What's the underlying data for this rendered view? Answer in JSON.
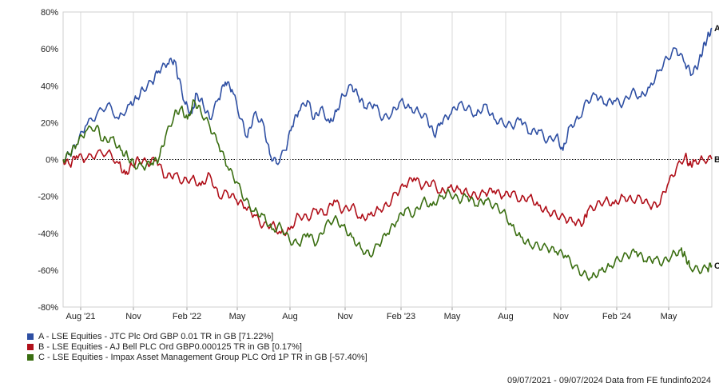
{
  "chart_data": {
    "type": "line",
    "y_ticks": [
      "80%",
      "60%",
      "40%",
      "20%",
      "0%",
      "-20%",
      "-40%",
      "-60%",
      "-80%"
    ],
    "ylim": [
      -80,
      80
    ],
    "x_ticks": [
      "Aug '21",
      "Nov",
      "Feb '22",
      "May",
      "Aug",
      "Nov",
      "Feb '23",
      "May",
      "Aug",
      "Nov",
      "Feb '24",
      "May"
    ],
    "grid": "vertical",
    "series": [
      {
        "id": "A",
        "name": "A - LSE Equities - JTC Plc Ord GBP 0.01 TR in GB [71.22%]",
        "color": "#2e4fa3",
        "points": [
          [
            0,
            0
          ],
          [
            0.3,
            3
          ],
          [
            0.6,
            8
          ],
          [
            1,
            18
          ],
          [
            1.5,
            24
          ],
          [
            2,
            30
          ],
          [
            2.5,
            22
          ],
          [
            3,
            30
          ],
          [
            3.3,
            33
          ],
          [
            3.6,
            38
          ],
          [
            4,
            42
          ],
          [
            4.3,
            48
          ],
          [
            4.7,
            52
          ],
          [
            5,
            54
          ],
          [
            5.2,
            44
          ],
          [
            5.5,
            30
          ],
          [
            5.8,
            25
          ],
          [
            6,
            36
          ],
          [
            6.3,
            30
          ],
          [
            6.6,
            22
          ],
          [
            7,
            33
          ],
          [
            7.3,
            42
          ],
          [
            7.6,
            38
          ],
          [
            8,
            22
          ],
          [
            8.3,
            12
          ],
          [
            8.6,
            25
          ],
          [
            9,
            20
          ],
          [
            9.3,
            3
          ],
          [
            9.6,
            -2
          ],
          [
            10,
            5
          ],
          [
            10.3,
            18
          ],
          [
            10.6,
            26
          ],
          [
            11,
            32
          ],
          [
            11.3,
            22
          ],
          [
            11.6,
            28
          ],
          [
            12,
            20
          ],
          [
            12.3,
            26
          ],
          [
            12.6,
            35
          ],
          [
            13,
            40
          ],
          [
            13.3,
            34
          ],
          [
            13.6,
            28
          ],
          [
            14,
            30
          ],
          [
            14.4,
            22
          ],
          [
            14.8,
            25
          ],
          [
            15.2,
            32
          ],
          [
            15.6,
            28
          ],
          [
            16,
            26
          ],
          [
            16.4,
            22
          ],
          [
            16.7,
            13
          ],
          [
            17,
            20
          ],
          [
            17.4,
            24
          ],
          [
            17.8,
            30
          ],
          [
            18.2,
            28
          ],
          [
            18.6,
            24
          ],
          [
            19,
            30
          ],
          [
            19.4,
            22
          ],
          [
            19.8,
            20
          ],
          [
            20.2,
            18
          ],
          [
            20.6,
            22
          ],
          [
            21,
            14
          ],
          [
            21.4,
            16
          ],
          [
            21.8,
            10
          ],
          [
            22.2,
            13
          ],
          [
            22.5,
            5
          ],
          [
            22.8,
            18
          ],
          [
            23.2,
            22
          ],
          [
            23.6,
            32
          ],
          [
            24,
            35
          ],
          [
            24.4,
            30
          ],
          [
            24.8,
            32
          ],
          [
            25.2,
            30
          ],
          [
            25.6,
            37
          ],
          [
            26,
            34
          ],
          [
            26.4,
            39
          ],
          [
            26.8,
            48
          ],
          [
            27.2,
            55
          ],
          [
            27.6,
            60
          ],
          [
            28,
            52
          ],
          [
            28.3,
            46
          ],
          [
            28.6,
            52
          ],
          [
            28.8,
            60
          ],
          [
            29,
            66
          ],
          [
            29.2,
            71.22
          ]
        ]
      },
      {
        "id": "B",
        "name": "B - LSE Equities - AJ Bell PLC Ord GBP0.000125 TR in GB [0.17%]",
        "color": "#b0101a",
        "points": [
          [
            0,
            0
          ],
          [
            0.3,
            -3
          ],
          [
            0.6,
            2
          ],
          [
            1,
            0
          ],
          [
            1.5,
            3
          ],
          [
            2,
            4
          ],
          [
            2.5,
            -2
          ],
          [
            2.8,
            -8
          ],
          [
            3.1,
            -3
          ],
          [
            3.4,
            0
          ],
          [
            3.8,
            -2
          ],
          [
            4.2,
            0
          ],
          [
            4.6,
            -10
          ],
          [
            5,
            -8
          ],
          [
            5.4,
            -12
          ],
          [
            5.8,
            -10
          ],
          [
            6.2,
            -14
          ],
          [
            6.6,
            -8
          ],
          [
            7,
            -20
          ],
          [
            7.4,
            -18
          ],
          [
            7.8,
            -22
          ],
          [
            8.2,
            -26
          ],
          [
            8.6,
            -30
          ],
          [
            9,
            -36
          ],
          [
            9.4,
            -35
          ],
          [
            9.8,
            -40
          ],
          [
            10.2,
            -38
          ],
          [
            10.6,
            -30
          ],
          [
            11,
            -32
          ],
          [
            11.4,
            -27
          ],
          [
            11.8,
            -30
          ],
          [
            12.2,
            -22
          ],
          [
            12.6,
            -28
          ],
          [
            13,
            -25
          ],
          [
            13.4,
            -32
          ],
          [
            13.8,
            -30
          ],
          [
            14.2,
            -27
          ],
          [
            14.6,
            -25
          ],
          [
            15,
            -18
          ],
          [
            15.4,
            -14
          ],
          [
            15.8,
            -10
          ],
          [
            16.2,
            -15
          ],
          [
            16.6,
            -12
          ],
          [
            17,
            -18
          ],
          [
            17.4,
            -15
          ],
          [
            17.8,
            -16
          ],
          [
            18.2,
            -18
          ],
          [
            18.6,
            -20
          ],
          [
            19,
            -18
          ],
          [
            19.4,
            -17
          ],
          [
            19.8,
            -20
          ],
          [
            20.2,
            -18
          ],
          [
            20.6,
            -22
          ],
          [
            21,
            -20
          ],
          [
            21.4,
            -25
          ],
          [
            21.8,
            -28
          ],
          [
            22.2,
            -30
          ],
          [
            22.6,
            -32
          ],
          [
            23,
            -34
          ],
          [
            23.4,
            -35
          ],
          [
            23.6,
            -28
          ],
          [
            24,
            -25
          ],
          [
            24.4,
            -22
          ],
          [
            24.8,
            -24
          ],
          [
            25.2,
            -20
          ],
          [
            25.6,
            -22
          ],
          [
            26,
            -21
          ],
          [
            26.4,
            -25
          ],
          [
            26.8,
            -25
          ],
          [
            27.2,
            -14
          ],
          [
            27.6,
            -5
          ],
          [
            28,
            2
          ],
          [
            28.2,
            -3
          ],
          [
            28.4,
            -1
          ],
          [
            28.8,
            0
          ],
          [
            29.2,
            0.17
          ]
        ]
      },
      {
        "id": "C",
        "name": "C - LSE Equities - Impax Asset Management Group PLC Ord 1P TR in GB [-57.40%]",
        "color": "#3a6e11",
        "points": [
          [
            0,
            0
          ],
          [
            0.3,
            3
          ],
          [
            0.6,
            8
          ],
          [
            1,
            15
          ],
          [
            1.5,
            18
          ],
          [
            1.8,
            10
          ],
          [
            2.2,
            12
          ],
          [
            2.6,
            5
          ],
          [
            2.9,
            2
          ],
          [
            3.2,
            -3
          ],
          [
            3.6,
            -4
          ],
          [
            4,
            -2
          ],
          [
            4.3,
            0
          ],
          [
            4.6,
            12
          ],
          [
            5,
            24
          ],
          [
            5.3,
            28
          ],
          [
            5.6,
            22
          ],
          [
            5.9,
            32
          ],
          [
            6.2,
            26
          ],
          [
            6.6,
            18
          ],
          [
            7,
            8
          ],
          [
            7.4,
            -4
          ],
          [
            7.8,
            -12
          ],
          [
            8.2,
            -22
          ],
          [
            8.6,
            -28
          ],
          [
            9,
            -30
          ],
          [
            9.4,
            -38
          ],
          [
            9.8,
            -36
          ],
          [
            10.2,
            -44
          ],
          [
            10.6,
            -46
          ],
          [
            11,
            -40
          ],
          [
            11.4,
            -46
          ],
          [
            11.8,
            -36
          ],
          [
            12.2,
            -32
          ],
          [
            12.6,
            -36
          ],
          [
            13,
            -42
          ],
          [
            13.4,
            -48
          ],
          [
            13.8,
            -52
          ],
          [
            14.2,
            -46
          ],
          [
            14.6,
            -40
          ],
          [
            15,
            -34
          ],
          [
            15.4,
            -27
          ],
          [
            15.8,
            -30
          ],
          [
            16.2,
            -22
          ],
          [
            16.6,
            -25
          ],
          [
            17,
            -20
          ],
          [
            17.4,
            -18
          ],
          [
            17.8,
            -22
          ],
          [
            18.2,
            -20
          ],
          [
            18.6,
            -25
          ],
          [
            19,
            -22
          ],
          [
            19.4,
            -25
          ],
          [
            19.8,
            -28
          ],
          [
            20.2,
            -36
          ],
          [
            20.6,
            -42
          ],
          [
            21,
            -46
          ],
          [
            21.4,
            -47
          ],
          [
            21.8,
            -48
          ],
          [
            22.2,
            -50
          ],
          [
            22.6,
            -52
          ],
          [
            23,
            -58
          ],
          [
            23.4,
            -62
          ],
          [
            23.8,
            -64
          ],
          [
            24.2,
            -60
          ],
          [
            24.6,
            -58
          ],
          [
            25,
            -54
          ],
          [
            25.4,
            -52
          ],
          [
            25.8,
            -50
          ],
          [
            26.2,
            -55
          ],
          [
            26.6,
            -54
          ],
          [
            27,
            -56
          ],
          [
            27.4,
            -52
          ],
          [
            27.8,
            -49
          ],
          [
            28,
            -52
          ],
          [
            28.2,
            -58
          ],
          [
            28.6,
            -60
          ],
          [
            29,
            -59
          ],
          [
            29.2,
            -57.4
          ]
        ]
      }
    ],
    "legend_position": "bottom-left"
  },
  "footer_text": "09/07/2021 - 09/07/2024 Data from FE fundinfo2024"
}
